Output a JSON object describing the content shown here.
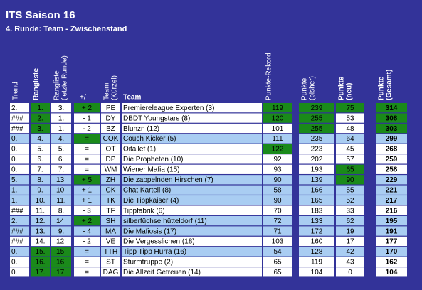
{
  "header": {
    "title": "ITS Saison 16",
    "subtitle": "4. Runde: Team - Zwischenstand"
  },
  "table": {
    "columns": [
      [
        "Trend"
      ],
      [
        "Rangliste"
      ],
      [
        "Rangliste",
        "(letzte Runde)"
      ],
      [
        "+/-"
      ],
      [
        "Team",
        "(Kürzel)"
      ],
      [
        "Team"
      ],
      [
        "Punkte-Rekord"
      ],
      [
        "Punkte",
        "(bisher)"
      ],
      [
        "Punkte",
        "(neu)"
      ],
      [
        "Punkte",
        "(Gesamt)"
      ]
    ],
    "rows": [
      [
        "2.",
        "1.",
        "3.",
        "+ 2",
        "PE",
        "Premiereleague Experten (3)",
        119,
        239,
        75,
        314
      ],
      [
        "###",
        "2.",
        "1.",
        "- 1",
        "DY",
        "DBDT Youngstars (8)",
        120,
        255,
        53,
        308
      ],
      [
        "###",
        "3.",
        "1.",
        "- 2",
        "BZ",
        "Blunzn (12)",
        101,
        255,
        48,
        303
      ],
      [
        "0.",
        "4.",
        "4.",
        "=",
        "COK",
        "Couch Kicker (5)",
        111,
        235,
        64,
        299
      ],
      [
        "0.",
        "5.",
        "5.",
        "=",
        "OT",
        "Oitallef (1)",
        122,
        223,
        45,
        268
      ],
      [
        "0.",
        "6.",
        "6.",
        "=",
        "DP",
        "Die Propheten (10)",
        92,
        202,
        57,
        259
      ],
      [
        "0.",
        "7.",
        "7.",
        "=",
        "WM",
        "Wiener Mafia (15)",
        93,
        193,
        65,
        258
      ],
      [
        "5.",
        "8.",
        "13.",
        "+ 5",
        "ZH",
        "Die zappelnden Hirschen (7)",
        90,
        139,
        90,
        229
      ],
      [
        "1.",
        "9.",
        "10.",
        "+ 1",
        "CK",
        "Chat Kartell (8)",
        58,
        166,
        55,
        221
      ],
      [
        "1.",
        "10.",
        "11.",
        "+ 1",
        "TK",
        "Die Tippkaiser (4)",
        90,
        165,
        52,
        217
      ],
      [
        "###",
        "11.",
        "8.",
        "- 3",
        "TF",
        "Tippfabrik (6)",
        70,
        183,
        33,
        216
      ],
      [
        "2.",
        "12.",
        "14.",
        "+ 2",
        "SH",
        "silberfüchse hütteldorf (11)",
        72,
        133,
        62,
        195
      ],
      [
        "###",
        "13.",
        "9.",
        "- 4",
        "MA",
        "Die Mafiosis (17)",
        71,
        172,
        19,
        191
      ],
      [
        "###",
        "14.",
        "12.",
        "- 2",
        "VE",
        "Die Vergesslichen (18)",
        103,
        160,
        17,
        177
      ],
      [
        "0.",
        "15.",
        "15.",
        "=",
        "TTH",
        "Tipp Tipp Hurra (16)",
        54,
        128,
        42,
        170
      ],
      [
        "0.",
        "16.",
        "16.",
        "=",
        "ST",
        "Sturmtruppe (2)",
        65,
        119,
        43,
        162
      ],
      [
        "0.",
        "17.",
        "17.",
        "=",
        "DAG",
        "Die Allzeit Getreuen (14)",
        65,
        104,
        0,
        104
      ]
    ],
    "green": [
      [
        1,
        3,
        6,
        7,
        8,
        9
      ],
      [
        1,
        6,
        7,
        9
      ],
      [
        1,
        7,
        9
      ],
      [
        3
      ],
      [
        6
      ],
      [],
      [
        8
      ],
      [
        3,
        8
      ],
      [],
      [],
      [],
      [
        3
      ],
      [],
      [],
      [
        1,
        2
      ],
      [
        1,
        2
      ],
      [
        1,
        2
      ]
    ],
    "shaded": [
      false,
      false,
      false,
      true,
      false,
      false,
      false,
      true,
      true,
      true,
      false,
      true,
      true,
      false,
      true,
      false,
      false
    ]
  }
}
